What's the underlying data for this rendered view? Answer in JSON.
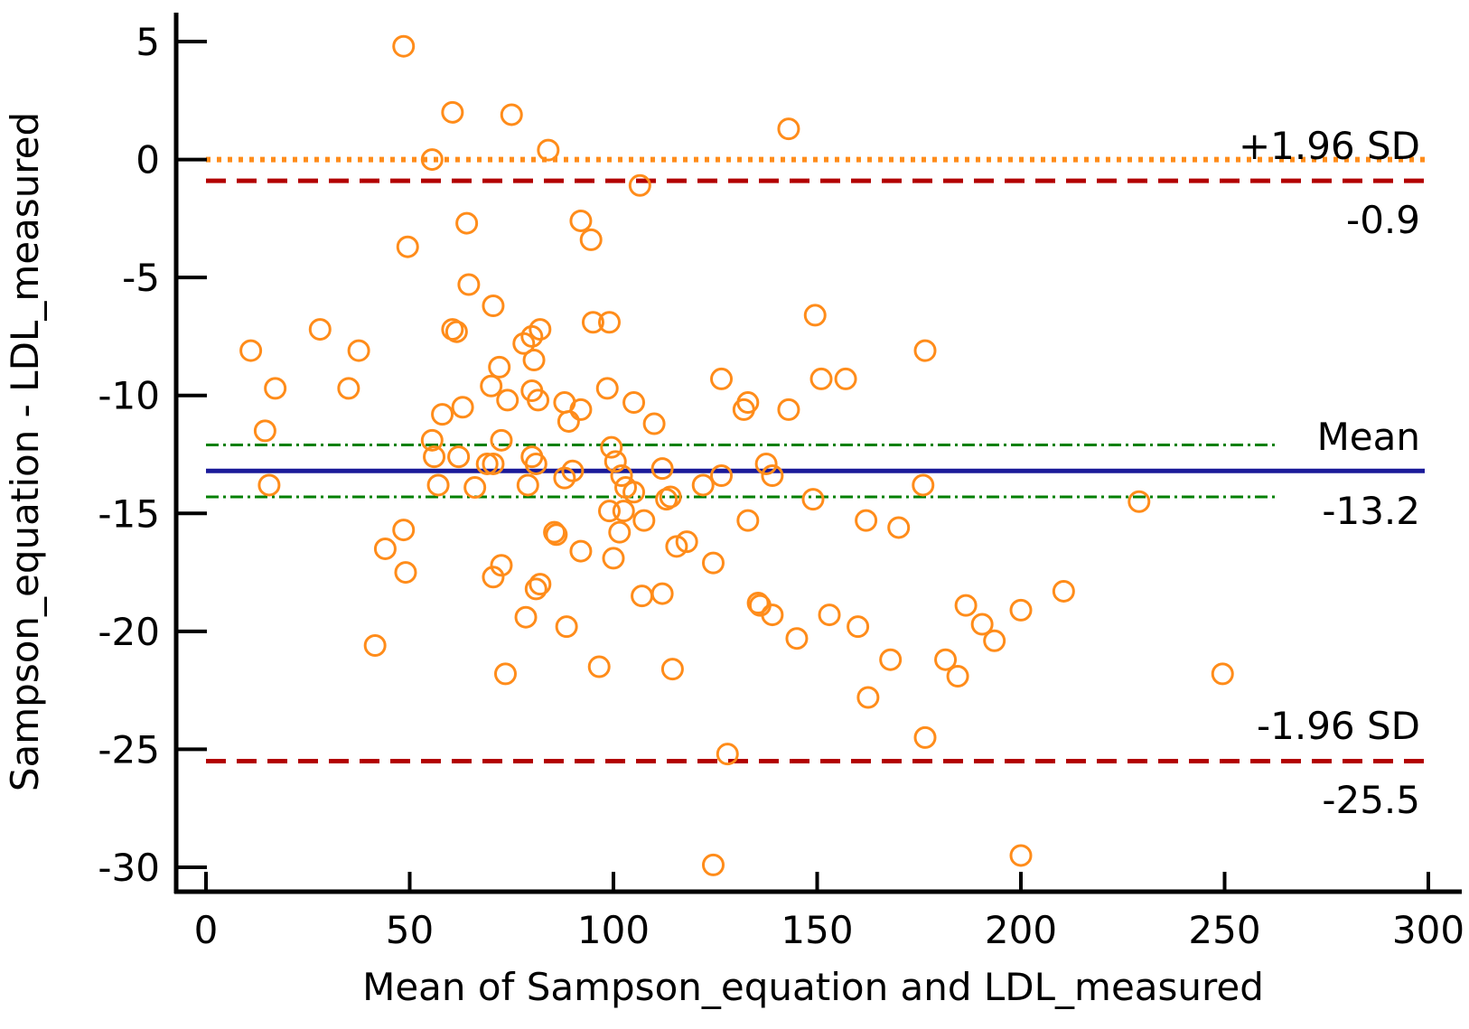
{
  "chart_data": {
    "type": "scatter",
    "subtype": "bland-altman",
    "title": "",
    "xlabel": "Mean of Sampson_equation and LDL_measured",
    "ylabel": "Sampson_equation - LDL_measured",
    "xlim": [
      0,
      300
    ],
    "ylim": [
      -31,
      5
    ],
    "xticks": [
      0,
      50,
      100,
      150,
      200,
      250,
      300
    ],
    "yticks": [
      5,
      0,
      -5,
      -10,
      -15,
      -20,
      -25,
      -30
    ],
    "grid": false,
    "colors": {
      "points": "#ff8c1a",
      "mean_line": "#1a1a99",
      "limit_lines": "#b30000",
      "ci_lines": "#008000",
      "reference_line": "#ff8c1a",
      "axis": "#000000"
    },
    "reference_line": {
      "y": 0,
      "label": ""
    },
    "lines": {
      "upper": {
        "label": "+1.96 SD",
        "value": -0.9,
        "value_label": "-0.9"
      },
      "mean": {
        "label": "Mean",
        "value": -13.2,
        "value_label": "-13.2",
        "ci": [
          -12.1,
          -14.3
        ]
      },
      "lower": {
        "label": "-1.96 SD",
        "value": -25.5,
        "value_label": "-25.5"
      }
    },
    "points": [
      [
        48.5,
        4.8
      ],
      [
        60.5,
        2.0
      ],
      [
        75,
        1.9
      ],
      [
        84,
        0.4
      ],
      [
        143,
        1.3
      ],
      [
        55.5,
        0.0
      ],
      [
        106.5,
        -1.1
      ],
      [
        92,
        -2.6
      ],
      [
        64,
        -2.7
      ],
      [
        94.5,
        -3.4
      ],
      [
        49.5,
        -3.7
      ],
      [
        64.5,
        -5.3
      ],
      [
        70.5,
        -6.2
      ],
      [
        149.5,
        -6.6
      ],
      [
        28,
        -7.2
      ],
      [
        60.5,
        -7.2
      ],
      [
        82,
        -7.2
      ],
      [
        95,
        -6.9
      ],
      [
        99,
        -6.9
      ],
      [
        61.5,
        -7.3
      ],
      [
        78,
        -7.8
      ],
      [
        80,
        -7.5
      ],
      [
        11,
        -8.1
      ],
      [
        37.5,
        -8.1
      ],
      [
        176.5,
        -8.1
      ],
      [
        72,
        -8.8
      ],
      [
        80.5,
        -8.5
      ],
      [
        126.5,
        -9.3
      ],
      [
        151,
        -9.3
      ],
      [
        157,
        -9.3
      ],
      [
        17,
        -9.7
      ],
      [
        35,
        -9.7
      ],
      [
        70,
        -9.6
      ],
      [
        80,
        -9.8
      ],
      [
        98.5,
        -9.7
      ],
      [
        74,
        -10.2
      ],
      [
        81.5,
        -10.2
      ],
      [
        88,
        -10.3
      ],
      [
        92,
        -10.6
      ],
      [
        63,
        -10.5
      ],
      [
        58,
        -10.8
      ],
      [
        105,
        -10.3
      ],
      [
        132,
        -10.6
      ],
      [
        133,
        -10.3
      ],
      [
        143,
        -10.6
      ],
      [
        89,
        -11.1
      ],
      [
        110,
        -11.2
      ],
      [
        14.5,
        -11.5
      ],
      [
        55.5,
        -11.9
      ],
      [
        72.5,
        -11.9
      ],
      [
        99.5,
        -12.2
      ],
      [
        80,
        -12.6
      ],
      [
        56,
        -12.6
      ],
      [
        62,
        -12.6
      ],
      [
        69,
        -12.9
      ],
      [
        70.5,
        -12.9
      ],
      [
        81,
        -12.9
      ],
      [
        100.5,
        -12.8
      ],
      [
        137.5,
        -12.9
      ],
      [
        90,
        -13.2
      ],
      [
        112,
        -13.1
      ],
      [
        88,
        -13.5
      ],
      [
        102,
        -13.4
      ],
      [
        126.5,
        -13.4
      ],
      [
        139,
        -13.4
      ],
      [
        15.5,
        -13.8
      ],
      [
        57,
        -13.8
      ],
      [
        66,
        -13.9
      ],
      [
        79,
        -13.8
      ],
      [
        103,
        -13.9
      ],
      [
        122,
        -13.8
      ],
      [
        176,
        -13.8
      ],
      [
        105,
        -14.1
      ],
      [
        114,
        -14.3
      ],
      [
        113,
        -14.4
      ],
      [
        149,
        -14.4
      ],
      [
        229,
        -14.5
      ],
      [
        99,
        -14.9
      ],
      [
        102.5,
        -14.9
      ],
      [
        107.5,
        -15.3
      ],
      [
        133,
        -15.3
      ],
      [
        162,
        -15.3
      ],
      [
        170,
        -15.6
      ],
      [
        48.5,
        -15.7
      ],
      [
        101.5,
        -15.8
      ],
      [
        85.5,
        -15.8
      ],
      [
        86,
        -15.9
      ],
      [
        118,
        -16.2
      ],
      [
        115.5,
        -16.4
      ],
      [
        44,
        -16.5
      ],
      [
        92,
        -16.6
      ],
      [
        100,
        -16.9
      ],
      [
        124.5,
        -17.1
      ],
      [
        72.5,
        -17.2
      ],
      [
        49,
        -17.5
      ],
      [
        70.5,
        -17.7
      ],
      [
        82,
        -18.0
      ],
      [
        81,
        -18.2
      ],
      [
        112,
        -18.4
      ],
      [
        107,
        -18.5
      ],
      [
        135.5,
        -18.8
      ],
      [
        136,
        -18.9
      ],
      [
        210.5,
        -18.3
      ],
      [
        186.5,
        -18.9
      ],
      [
        200,
        -19.1
      ],
      [
        139,
        -19.3
      ],
      [
        153,
        -19.3
      ],
      [
        78.5,
        -19.4
      ],
      [
        160,
        -19.8
      ],
      [
        88.5,
        -19.8
      ],
      [
        190.5,
        -19.7
      ],
      [
        145,
        -20.3
      ],
      [
        193.5,
        -20.4
      ],
      [
        41.5,
        -20.6
      ],
      [
        168,
        -21.2
      ],
      [
        181.5,
        -21.2
      ],
      [
        96.5,
        -21.5
      ],
      [
        114.5,
        -21.6
      ],
      [
        73.5,
        -21.8
      ],
      [
        184.5,
        -21.9
      ],
      [
        249.5,
        -21.8
      ],
      [
        162.5,
        -22.8
      ],
      [
        176.5,
        -24.5
      ],
      [
        128,
        -25.2
      ],
      [
        124.5,
        -29.9
      ],
      [
        200,
        -29.5
      ]
    ]
  }
}
